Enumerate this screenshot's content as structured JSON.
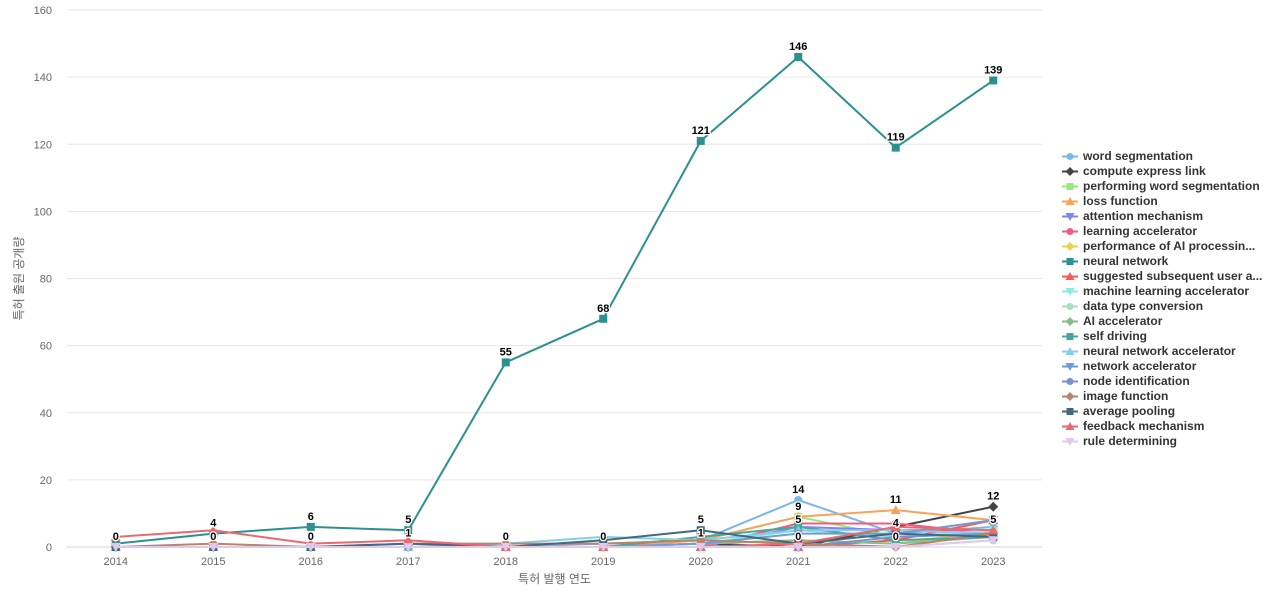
{
  "chart_data": {
    "type": "line",
    "title": "",
    "xlabel": "특허 발행 연도",
    "ylabel": "특허 출원 공개량",
    "ylim": [
      0,
      160
    ],
    "yticks": [
      0,
      20,
      40,
      60,
      80,
      100,
      120,
      140,
      160
    ],
    "categories": [
      "2014",
      "2015",
      "2016",
      "2017",
      "2018",
      "2019",
      "2020",
      "2021",
      "2022",
      "2023"
    ],
    "grid": "horizontal",
    "legend_position": "right",
    "series": [
      {
        "name": "word segmentation",
        "color": "#7cb5ec",
        "marker": "circle",
        "values": [
          0,
          0,
          0,
          0,
          0,
          1,
          2,
          14,
          4,
          6
        ]
      },
      {
        "name": "compute express link",
        "color": "#434348",
        "marker": "diamond",
        "values": [
          0,
          0,
          0,
          0,
          0,
          0,
          1,
          0,
          6,
          12
        ]
      },
      {
        "name": "performing word segmentation",
        "color": "#90ed7d",
        "marker": "square",
        "values": [
          0,
          0,
          0,
          0,
          0,
          0,
          2,
          9,
          3,
          5
        ]
      },
      {
        "name": "loss function",
        "color": "#f7a35c",
        "marker": "triangle",
        "values": [
          0,
          0,
          0,
          0,
          0,
          0,
          2,
          9,
          11,
          8
        ]
      },
      {
        "name": "attention mechanism",
        "color": "#8085e9",
        "marker": "triangle-down",
        "values": [
          0,
          0,
          0,
          0,
          0,
          0,
          0,
          6,
          5,
          5
        ]
      },
      {
        "name": "learning accelerator",
        "color": "#f15c80",
        "marker": "circle",
        "values": [
          0,
          0,
          0,
          0,
          0,
          0,
          0,
          7,
          7,
          4
        ]
      },
      {
        "name": "performance of AI processin...",
        "color": "#e4d354",
        "marker": "diamond",
        "values": [
          0,
          0,
          0,
          0,
          0,
          0,
          1,
          2,
          1,
          5
        ]
      },
      {
        "name": "neural network",
        "color": "#2b908f",
        "marker": "square",
        "values": [
          1,
          4,
          6,
          5,
          55,
          68,
          121,
          146,
          119,
          139
        ]
      },
      {
        "name": "suggested subsequent user a...",
        "color": "#f45b5b",
        "marker": "triangle",
        "values": [
          0,
          0,
          0,
          0,
          0,
          0,
          0,
          0,
          2,
          8
        ]
      },
      {
        "name": "machine learning accelerator",
        "color": "#91e8e1",
        "marker": "triangle-down",
        "values": [
          0,
          0,
          0,
          0,
          0,
          0,
          1,
          5,
          3,
          5
        ]
      },
      {
        "name": "data type conversion",
        "color": "#a8dfc3",
        "marker": "circle",
        "values": [
          0,
          0,
          0,
          0,
          0,
          0,
          0,
          1,
          0,
          2
        ]
      },
      {
        "name": "AI accelerator",
        "color": "#8bbc88",
        "marker": "diamond",
        "values": [
          0,
          0,
          0,
          0,
          0,
          0,
          1,
          2,
          1,
          3
        ]
      },
      {
        "name": "self driving",
        "color": "#45a89a",
        "marker": "square",
        "values": [
          0,
          0,
          0,
          0,
          0,
          0,
          3,
          6,
          2,
          3
        ]
      },
      {
        "name": "neural network accelerator",
        "color": "#84cfe8",
        "marker": "triangle",
        "values": [
          0,
          0,
          0,
          0,
          1,
          3,
          2,
          5,
          5,
          4
        ]
      },
      {
        "name": "network accelerator",
        "color": "#6f9bd6",
        "marker": "triangle-down",
        "values": [
          0,
          0,
          0,
          0,
          0,
          0,
          1,
          4,
          4,
          8
        ]
      },
      {
        "name": "node identification",
        "color": "#7b8fd0",
        "marker": "circle",
        "values": [
          0,
          0,
          0,
          0,
          0,
          0,
          0,
          0,
          3,
          4
        ]
      },
      {
        "name": "image function",
        "color": "#b5866b",
        "marker": "diamond",
        "values": [
          0,
          1,
          0,
          1,
          1,
          1,
          2,
          1,
          0,
          4
        ]
      },
      {
        "name": "average pooling",
        "color": "#44687e",
        "marker": "square",
        "values": [
          0,
          0,
          0,
          1,
          0,
          2,
          5,
          1,
          4,
          3
        ]
      },
      {
        "name": "feedback mechanism",
        "color": "#e86a70",
        "marker": "triangle",
        "values": [
          3,
          5,
          1,
          2,
          0,
          0,
          0,
          1,
          6,
          5
        ]
      },
      {
        "name": "rule determining",
        "color": "#e2c8ea",
        "marker": "triangle-down",
        "values": [
          0,
          0,
          0,
          0,
          0,
          0,
          0,
          0,
          0,
          2
        ]
      }
    ],
    "data_labels": [
      {
        "category": "2014",
        "value": 0
      },
      {
        "category": "2014",
        "value": 0
      },
      {
        "category": "2015",
        "value": 4
      },
      {
        "category": "2015",
        "value": 0
      },
      {
        "category": "2016",
        "value": 6
      },
      {
        "category": "2016",
        "value": 0
      },
      {
        "category": "2017",
        "value": 5
      },
      {
        "category": "2017",
        "value": 1
      },
      {
        "category": "2018",
        "value": 55
      },
      {
        "category": "2018",
        "value": 0
      },
      {
        "category": "2019",
        "value": 68
      },
      {
        "category": "2019",
        "value": 0
      },
      {
        "category": "2020",
        "value": 121
      },
      {
        "category": "2020",
        "value": 5
      },
      {
        "category": "2020",
        "value": 1
      },
      {
        "category": "2021",
        "value": 146
      },
      {
        "category": "2021",
        "value": 14
      },
      {
        "category": "2021",
        "value": 9
      },
      {
        "category": "2021",
        "value": 5
      },
      {
        "category": "2021",
        "value": 0
      },
      {
        "category": "2022",
        "value": 119
      },
      {
        "category": "2022",
        "value": 11
      },
      {
        "category": "2022",
        "value": 4
      },
      {
        "category": "2022",
        "value": 0
      },
      {
        "category": "2023",
        "value": 139
      },
      {
        "category": "2023",
        "value": 12
      },
      {
        "category": "2023",
        "value": 5
      },
      {
        "category": "2023",
        "value": 5
      }
    ]
  }
}
